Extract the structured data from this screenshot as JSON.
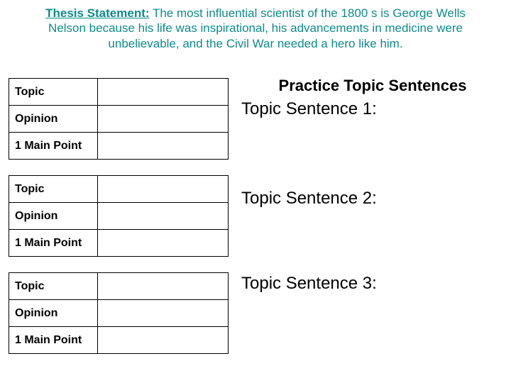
{
  "colors": {
    "thesis_text": "#0d8b8b",
    "body_text": "#000000",
    "border": "#000000",
    "background": "#ffffff"
  },
  "thesis": {
    "label": "Thesis Statement:",
    "body": "  The most influential scientist of the 1800 s is George Wells Nelson because his life was inspirational, his advancements in medicine were unbelievable, and the Civil War needed a hero like him."
  },
  "tables": [
    {
      "rows": [
        "Topic",
        "Opinion",
        "1 Main Point"
      ]
    },
    {
      "rows": [
        "Topic",
        "Opinion",
        "1 Main Point"
      ]
    },
    {
      "rows": [
        "Topic",
        "Opinion",
        "1 Main Point"
      ]
    }
  ],
  "right": {
    "heading": "Practice Topic Sentences",
    "sentences": [
      "Topic Sentence 1:",
      "Topic Sentence 2:",
      "Topic Sentence 3:"
    ]
  }
}
